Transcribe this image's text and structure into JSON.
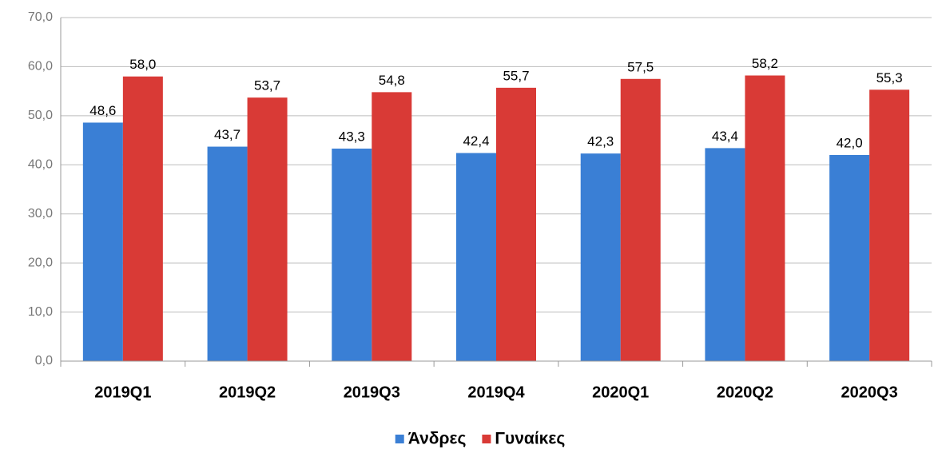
{
  "chart_data": {
    "type": "bar",
    "categories": [
      "2019Q1",
      "2019Q2",
      "2019Q3",
      "2019Q4",
      "2020Q1",
      "2020Q2",
      "2020Q3"
    ],
    "series": [
      {
        "name": "Άνδρες",
        "color": "#3a7fd5",
        "values": [
          48.6,
          43.7,
          43.3,
          42.4,
          42.3,
          43.4,
          42.0
        ],
        "value_labels": [
          "48,6",
          "43,7",
          "43,3",
          "42,4",
          "42,3",
          "43,4",
          "42,0"
        ]
      },
      {
        "name": "Γυναίκες",
        "color": "#d93a36",
        "values": [
          58.0,
          53.7,
          54.8,
          55.7,
          57.5,
          58.2,
          55.3
        ],
        "value_labels": [
          "58,0",
          "53,7",
          "54,8",
          "55,7",
          "57,5",
          "58,2",
          "55,3"
        ]
      }
    ],
    "ylim": [
      0,
      70
    ],
    "yticks": [
      {
        "value": 0,
        "label": "0,0"
      },
      {
        "value": 10,
        "label": "10,0"
      },
      {
        "value": 20,
        "label": "20,0"
      },
      {
        "value": 30,
        "label": "30,0"
      },
      {
        "value": 40,
        "label": "40,0"
      },
      {
        "value": 50,
        "label": "50,0"
      },
      {
        "value": 60,
        "label": "60,0"
      },
      {
        "value": 70,
        "label": "70,0"
      }
    ],
    "grid": true,
    "legend": "bottom"
  }
}
